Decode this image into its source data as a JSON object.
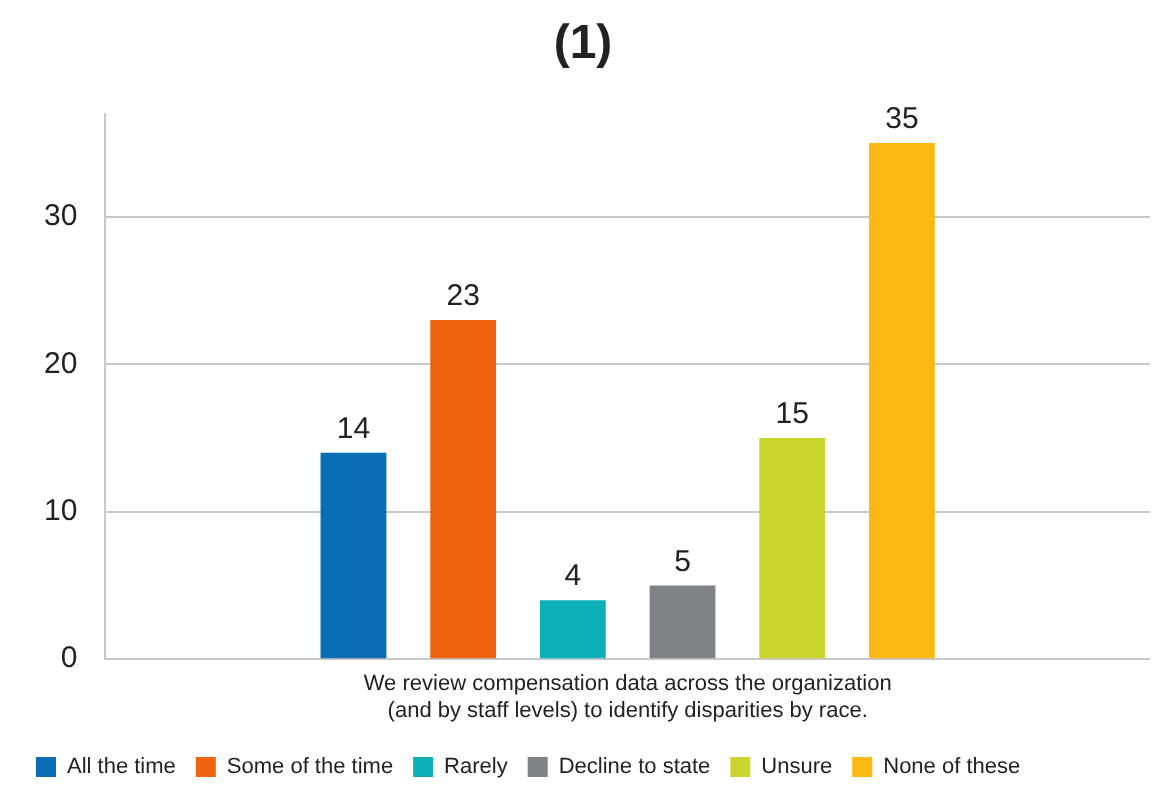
{
  "chart_data": {
    "type": "bar",
    "title": "(1)",
    "categories": [
      "We review compensation data across the organization (and by staff levels) to identify disparities by race."
    ],
    "series": [
      {
        "name": "All the time",
        "color": "#0a6eb4",
        "values": [
          14
        ]
      },
      {
        "name": "Some of the time",
        "color": "#ef650f",
        "values": [
          23
        ]
      },
      {
        "name": "Rarely",
        "color": "#0cb0b8",
        "values": [
          4
        ]
      },
      {
        "name": "Decline to state",
        "color": "#808285",
        "values": [
          5
        ]
      },
      {
        "name": "Unsure",
        "color": "#c9d62e",
        "values": [
          15
        ]
      },
      {
        "name": "None of these",
        "color": "#fdb913",
        "values": [
          35
        ]
      }
    ],
    "ylim": [
      0,
      37
    ],
    "yticks": [
      0,
      10,
      20,
      30
    ],
    "grid": "y",
    "legend": "bottom",
    "data_labels": true
  }
}
